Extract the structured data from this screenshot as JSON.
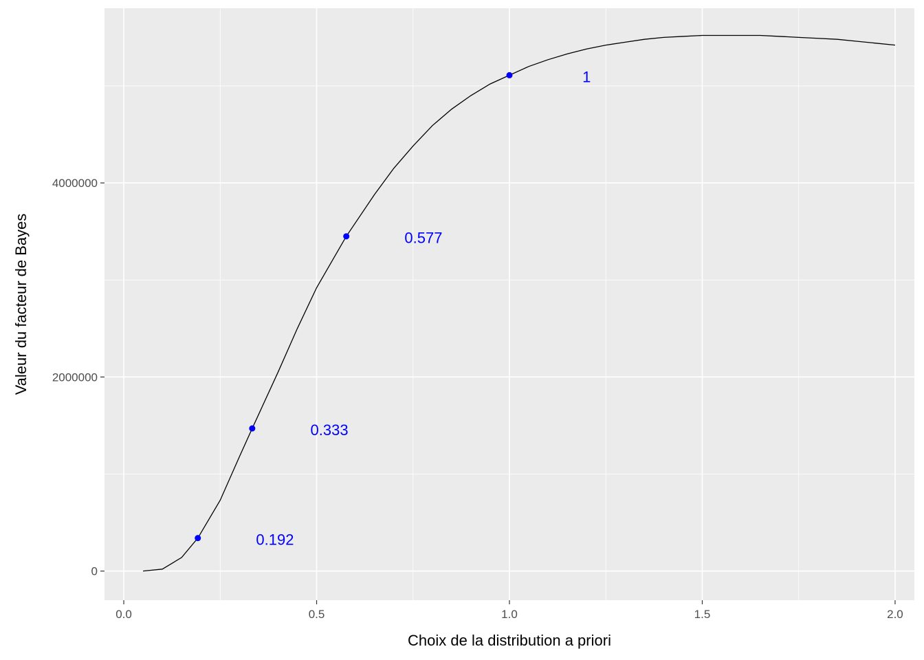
{
  "chart_data": {
    "type": "line",
    "xlabel": "Choix de la distribution a priori",
    "ylabel": "Valeur du facteur de Bayes",
    "xlim": [
      -0.05,
      2.05
    ],
    "ylim": [
      -300000,
      5800000
    ],
    "x_ticks": [
      0.0,
      0.5,
      1.0,
      1.5,
      2.0
    ],
    "x_tick_labels": [
      "0.0",
      "0.5",
      "1.0",
      "1.5",
      "2.0"
    ],
    "x_minor_ticks": [
      0.25,
      0.75,
      1.25,
      1.75
    ],
    "y_ticks": [
      0,
      2000000,
      4000000
    ],
    "y_tick_labels": [
      "0",
      "2000000",
      "4000000"
    ],
    "y_minor_ticks": [
      1000000,
      3000000,
      5000000
    ],
    "grid": true,
    "panel_background": "#ebebeb",
    "grid_color": "#ffffff",
    "line_color": "#000000",
    "point_color": "#0000ff",
    "series": [
      {
        "x": [
          0.05,
          0.1,
          0.15,
          0.192,
          0.25,
          0.3,
          0.333,
          0.4,
          0.45,
          0.5,
          0.577,
          0.65,
          0.7,
          0.75,
          0.8,
          0.85,
          0.9,
          0.95,
          1.0,
          1.05,
          1.1,
          1.15,
          1.2,
          1.25,
          1.3,
          1.35,
          1.4,
          1.45,
          1.5,
          1.55,
          1.6,
          1.65,
          1.7,
          1.75,
          1.8,
          1.85,
          1.9,
          1.95,
          2.0
        ],
        "y": [
          0,
          20000,
          140000,
          340000,
          730000,
          1180000,
          1470000,
          2050000,
          2500000,
          2920000,
          3450000,
          3880000,
          4150000,
          4380000,
          4590000,
          4760000,
          4900000,
          5020000,
          5110000,
          5200000,
          5270000,
          5330000,
          5380000,
          5420000,
          5450000,
          5480000,
          5500000,
          5510000,
          5520000,
          5520000,
          5520000,
          5520000,
          5510000,
          5500000,
          5490000,
          5480000,
          5460000,
          5440000,
          5420000
        ]
      }
    ],
    "points": [
      {
        "x": 0.192,
        "y": 340000,
        "label": "0.192"
      },
      {
        "x": 0.333,
        "y": 1470000,
        "label": "0.333"
      },
      {
        "x": 0.577,
        "y": 3450000,
        "label": "0.577"
      },
      {
        "x": 1.0,
        "y": 5110000,
        "label": "1"
      }
    ]
  }
}
